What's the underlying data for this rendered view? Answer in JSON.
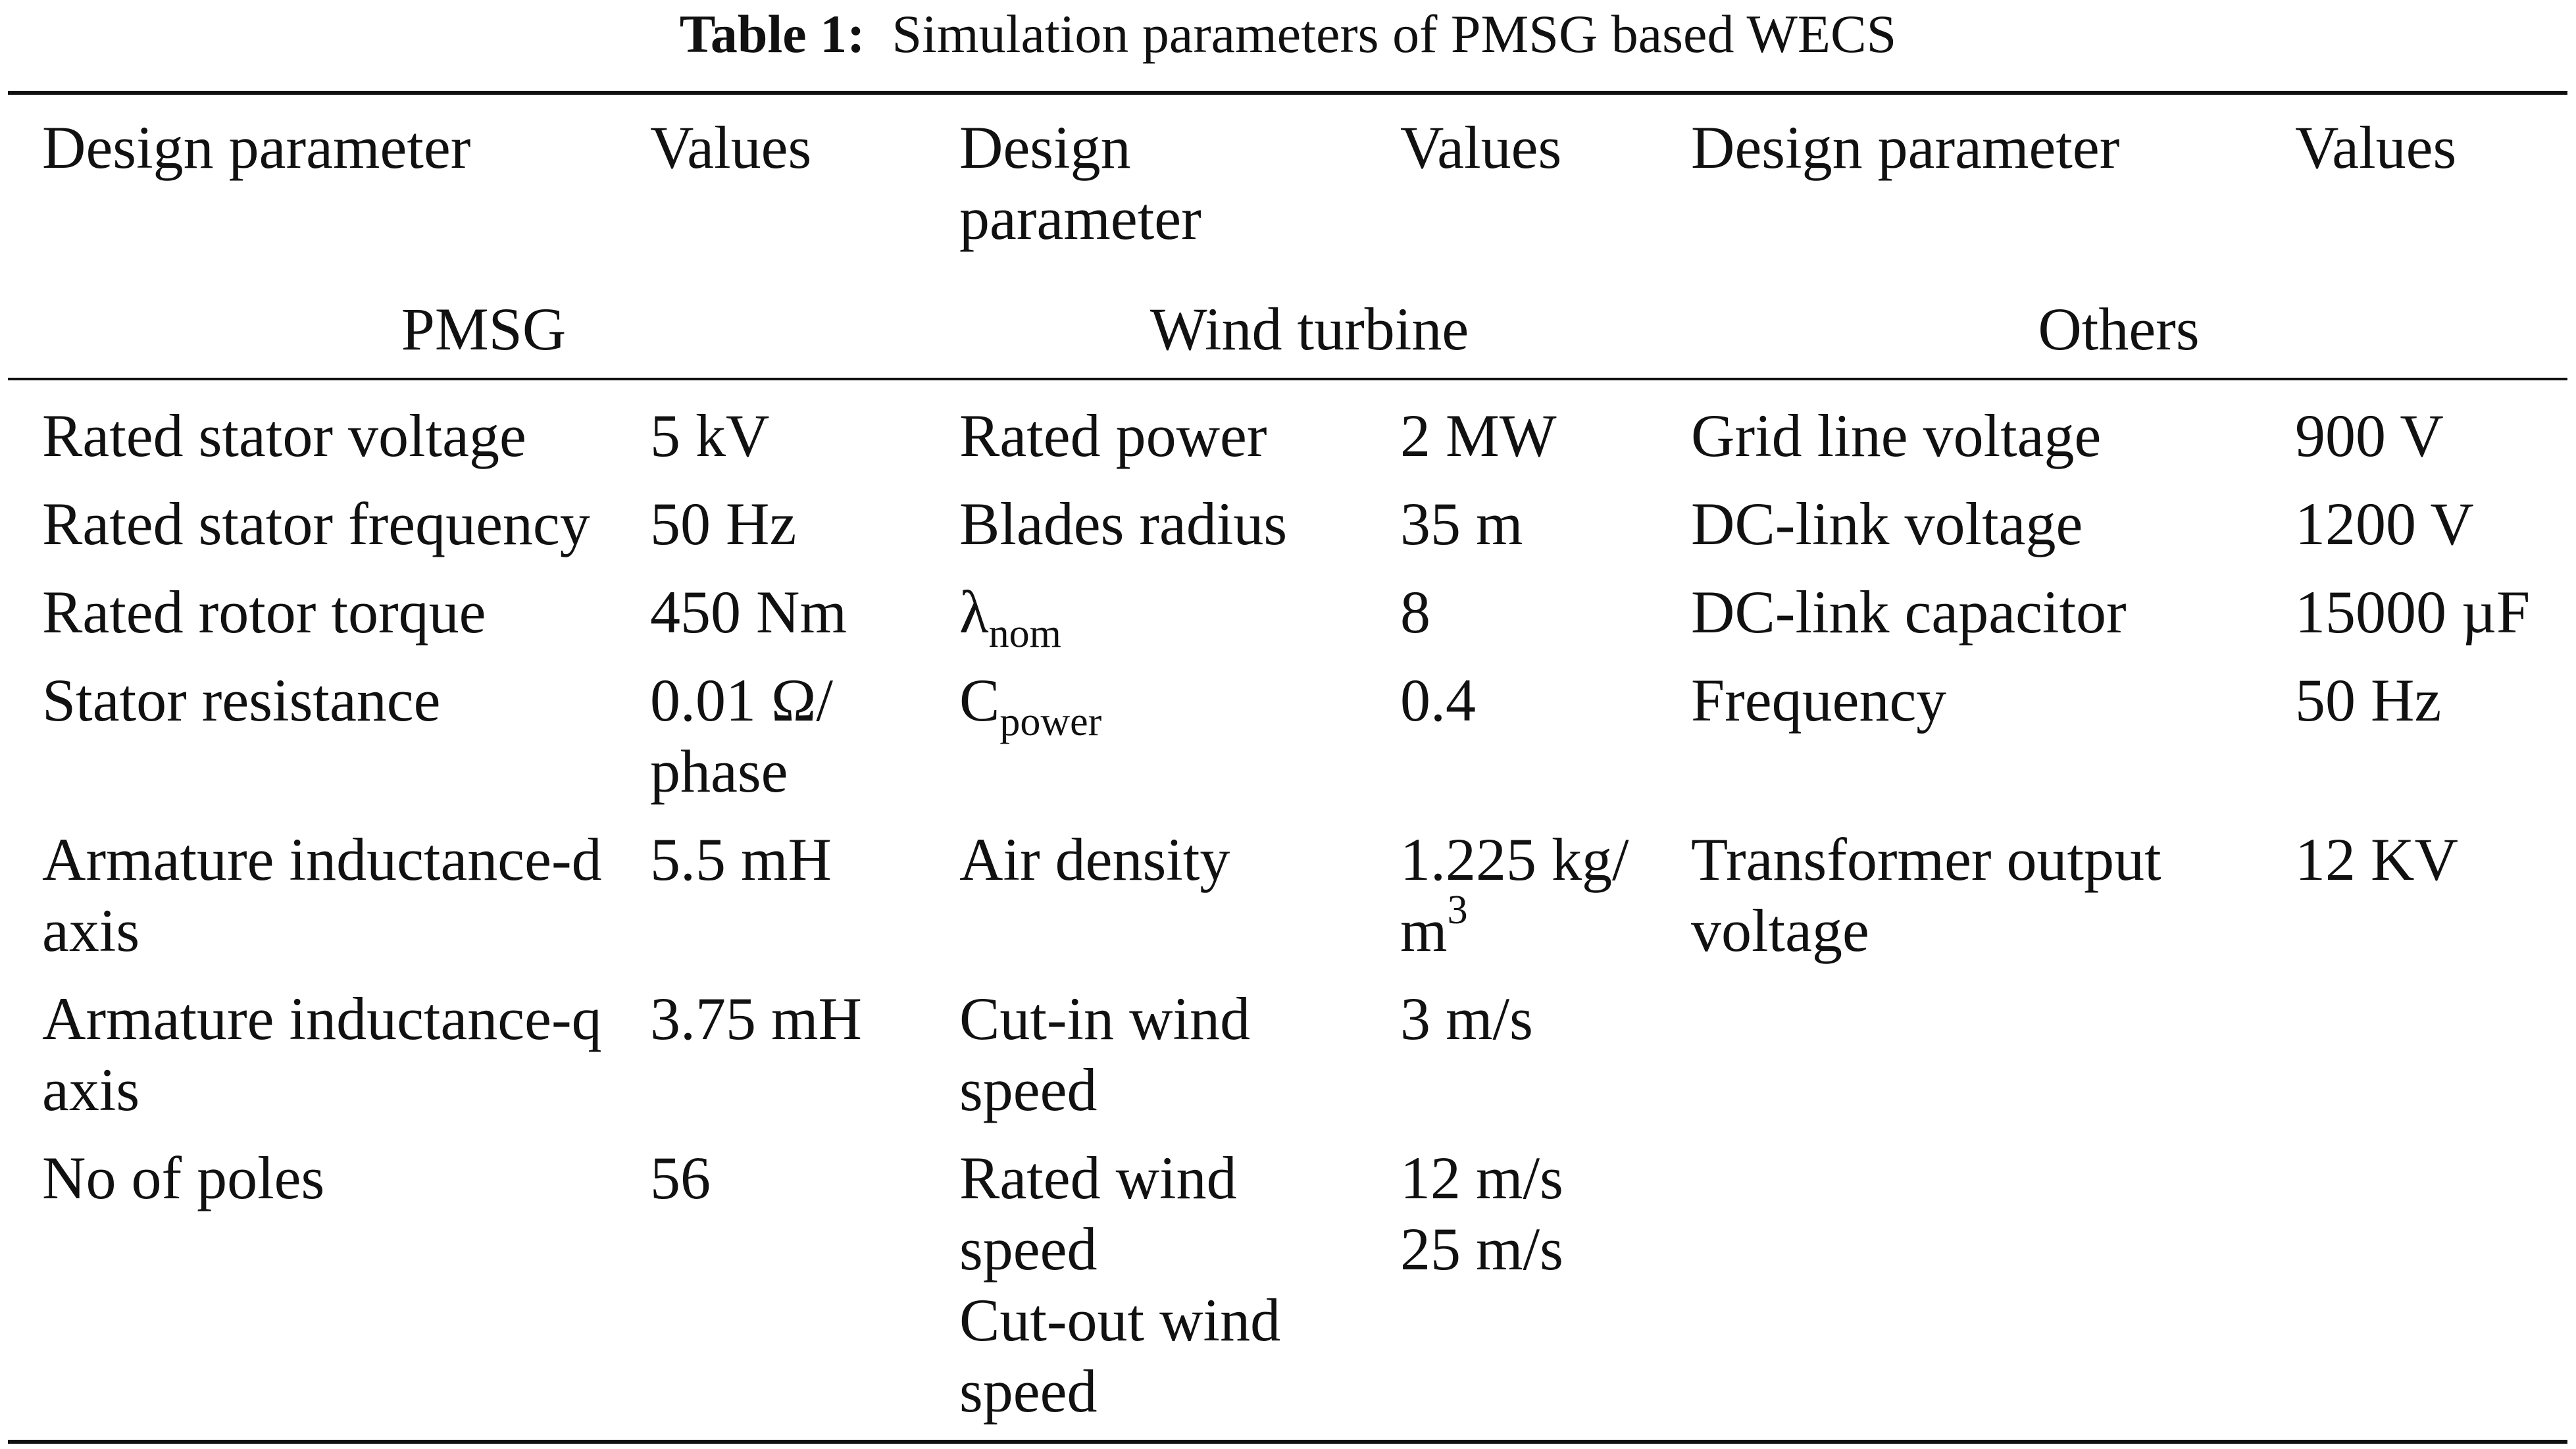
{
  "caption": {
    "label": "Table 1:",
    "text": "Simulation parameters of PMSG based WECS"
  },
  "headers": {
    "col1": "Design parameter",
    "col2": "Values",
    "col3_line1": "Design",
    "col3_line2": "parameter",
    "col4": "Values",
    "col5": "Design parameter",
    "col6": "Values"
  },
  "groups": {
    "pmsg": "PMSG",
    "wind_turbine": "Wind turbine",
    "others": "Others"
  },
  "pmsg": [
    {
      "param": [
        "Rated stator voltage"
      ],
      "value": [
        "5 kV"
      ]
    },
    {
      "param": [
        "Rated stator frequency"
      ],
      "value": [
        "50 Hz"
      ]
    },
    {
      "param": [
        "Rated rotor torque"
      ],
      "value": [
        "450 Nm"
      ]
    },
    {
      "param": [
        "Stator resistance"
      ],
      "value": [
        "0.01 Ω/",
        "phase"
      ]
    },
    {
      "param": [
        "Armature inductance-d",
        "axis"
      ],
      "value": [
        "5.5 mH"
      ]
    },
    {
      "param": [
        "Armature inductance-q",
        "axis"
      ],
      "value": [
        "3.75 mH"
      ]
    },
    {
      "param": [
        "No of poles"
      ],
      "value": [
        "56"
      ]
    }
  ],
  "wind_turbine": [
    {
      "param": [
        "Rated power"
      ],
      "value": [
        "2 MW"
      ]
    },
    {
      "param": [
        "Blades radius"
      ],
      "value": [
        "35 m"
      ]
    },
    {
      "param_base": "λ",
      "param_sub": "nom",
      "value": [
        "8"
      ]
    },
    {
      "param_base": "C",
      "param_sub": "power",
      "value": [
        "0.4"
      ]
    },
    {
      "param": [
        "Air density"
      ],
      "value_line1": "1.225 kg/",
      "value_line2_base": "m",
      "value_line2_sup": "3"
    },
    {
      "param": [
        "Cut-in wind",
        "speed"
      ],
      "value": [
        "3 m/s"
      ]
    },
    {
      "param": [
        "Rated wind",
        "speed"
      ],
      "value": [
        "12 m/s"
      ]
    },
    {
      "param": [
        "Cut-out wind",
        "speed"
      ],
      "value": [
        "25 m/s"
      ]
    }
  ],
  "others": [
    {
      "param": [
        "Grid line voltage"
      ],
      "value": [
        "900 V"
      ]
    },
    {
      "param": [
        "DC-link voltage"
      ],
      "value": [
        "1200 V"
      ]
    },
    {
      "param": [
        "DC-link capacitor"
      ],
      "value": [
        "15000 µF"
      ]
    },
    {
      "param": [
        "Frequency"
      ],
      "value": [
        "50 Hz"
      ]
    },
    {
      "param": [
        "Transformer output",
        "voltage"
      ],
      "value": [
        "12 KV"
      ]
    }
  ]
}
